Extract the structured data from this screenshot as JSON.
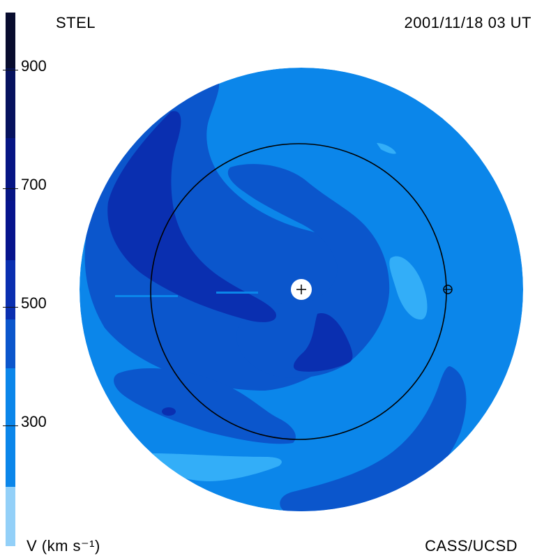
{
  "header": {
    "model": "STEL",
    "datetime": "2001/11/18 03 UT"
  },
  "footer": {
    "units_label": "V (km s⁻¹)",
    "credit": "CASS/UCSD"
  },
  "colorbar": {
    "ticks": [
      "900",
      "700",
      "500",
      "300"
    ],
    "colors": [
      "#080c2e",
      "#06125e",
      "#061a8a",
      "#0a2fb0",
      "#0b56cc",
      "#0b86ea",
      "#33aef8",
      "#93d0f8"
    ]
  },
  "palette": {
    "outer_disk": "#0b86ea",
    "mid_blue": "#0b56cc",
    "dark_blue": "#0a2fb0",
    "light_blue": "#33aef8",
    "earth_orbit": "#000000"
  }
}
